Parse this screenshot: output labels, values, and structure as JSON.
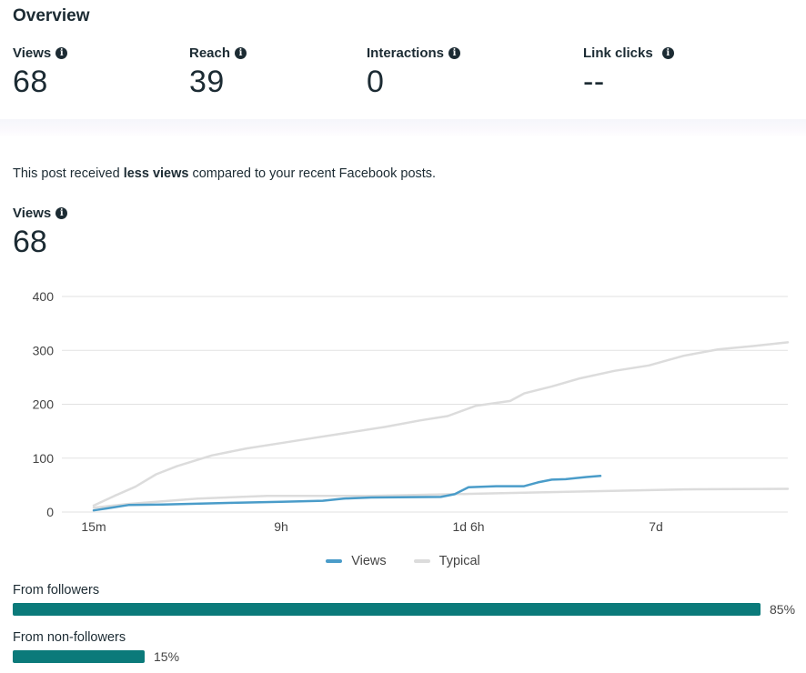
{
  "overview": {
    "title": "Overview",
    "metrics": [
      {
        "label": "Views",
        "value": "68"
      },
      {
        "label": "Reach",
        "value": "39"
      },
      {
        "label": "Interactions",
        "value": "0"
      },
      {
        "label": "Link clicks",
        "value": "--"
      }
    ]
  },
  "note": {
    "prefix": "This post received ",
    "bold": "less views",
    "suffix": " compared to your recent Facebook posts."
  },
  "views_block": {
    "label": "Views",
    "value": "68"
  },
  "colors": {
    "views": "#4a9cc9",
    "typical": "#dcdcdc",
    "bar": "#0b7a7a",
    "grid": "#e2e2e2"
  },
  "chart_data": {
    "type": "line",
    "ylim": [
      0,
      400
    ],
    "yticks": [
      0,
      100,
      200,
      300,
      400
    ],
    "xticks": [
      "15m",
      "9h",
      "1d 6h",
      "7d"
    ],
    "x_tick_positions": [
      0,
      0.27,
      0.54,
      0.81
    ],
    "grid": true,
    "legend_placement": "bottom-center",
    "series": [
      {
        "name": "Views",
        "x": [
          0,
          0.02,
          0.05,
          0.1,
          0.2,
          0.27,
          0.33,
          0.36,
          0.4,
          0.5,
          0.52,
          0.54,
          0.58,
          0.62,
          0.64,
          0.66,
          0.68,
          0.71,
          0.73
        ],
        "values": [
          3,
          7,
          13,
          14,
          17,
          19,
          21,
          25,
          27,
          28,
          33,
          46,
          48,
          48,
          55,
          60,
          61,
          65,
          67
        ]
      },
      {
        "name": "Typical",
        "x": [
          0,
          0.03,
          0.06,
          0.09,
          0.12,
          0.17,
          0.22,
          0.27,
          0.32,
          0.37,
          0.42,
          0.47,
          0.51,
          0.55,
          0.6,
          0.62,
          0.66,
          0.7,
          0.75,
          0.8,
          0.85,
          0.9,
          0.95,
          1.0
        ],
        "values": [
          12,
          30,
          47,
          70,
          85,
          105,
          118,
          128,
          138,
          148,
          158,
          170,
          178,
          197,
          206,
          220,
          233,
          248,
          262,
          272,
          290,
          302,
          308,
          315
        ]
      },
      {
        "name": "Typical",
        "x": [
          0,
          0.05,
          0.15,
          0.25,
          0.4,
          0.55,
          0.7,
          0.85,
          1.0
        ],
        "values": [
          8,
          15,
          25,
          30,
          30,
          34,
          38,
          42,
          43
        ]
      }
    ]
  },
  "legend": [
    {
      "name": "Views"
    },
    {
      "name": "Typical"
    }
  ],
  "breakdown": [
    {
      "label": "From followers",
      "percent_text": "85%",
      "fraction": 0.85
    },
    {
      "label": "From non-followers",
      "percent_text": "15%",
      "fraction": 0.15
    }
  ]
}
